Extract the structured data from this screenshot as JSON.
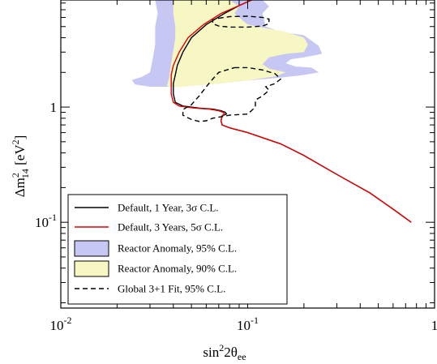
{
  "chart_data": {
    "type": "line",
    "xscale": "log",
    "yscale": "log",
    "xlim": [
      0.01,
      1
    ],
    "ylim": [
      0.018,
      8.5
    ],
    "xlabel": {
      "main": "sin",
      "sup": "2",
      "mid": "2θ",
      "sub": "ee"
    },
    "ylabel": {
      "pre": "Δm",
      "sup": "2",
      "sub": "14",
      "post": " [eV",
      "sup2": "2",
      "end": "]"
    },
    "x_ticks": [
      {
        "value": 0.01,
        "base": "10",
        "exp": "-2"
      },
      {
        "value": 0.1,
        "base": "10",
        "exp": "-1"
      },
      {
        "value": 1,
        "base": "1",
        "exp": ""
      }
    ],
    "y_ticks": [
      {
        "value": 0.1,
        "base": "10",
        "exp": "-1"
      },
      {
        "value": 1,
        "base": "1",
        "exp": ""
      }
    ],
    "legend": {
      "position": "bottom-left",
      "entries": [
        {
          "kind": "line",
          "color": "#000000",
          "dash": "",
          "label": "Default, 1 Year, 3σ C.L."
        },
        {
          "kind": "line",
          "color": "#e00000",
          "dash": "",
          "label": "Default, 3 Years, 5σ C.L."
        },
        {
          "kind": "box",
          "color": "#c6c8f3",
          "label": "Reactor Anomaly, 95% C.L."
        },
        {
          "kind": "box",
          "color": "#f7f7c4",
          "label": "Reactor Anomaly, 90% C.L."
        },
        {
          "kind": "line",
          "color": "#000000",
          "dash": "6,4",
          "label": "Global 3+1 Fit,  95% C.L."
        }
      ]
    },
    "regions": [
      {
        "name": "Reactor Anomaly, 95% C.L.",
        "color": "#c6c8f3",
        "points": [
          [
            0.12,
            8.5
          ],
          [
            0.13,
            7.5
          ],
          [
            0.12,
            6.5
          ],
          [
            0.125,
            5.0
          ],
          [
            0.15,
            4.5
          ],
          [
            0.2,
            4.2
          ],
          [
            0.24,
            3.4
          ],
          [
            0.25,
            2.9
          ],
          [
            0.2,
            2.7
          ],
          [
            0.17,
            2.6
          ],
          [
            0.16,
            2.4
          ],
          [
            0.18,
            2.25
          ],
          [
            0.22,
            2.2
          ],
          [
            0.24,
            2.0
          ],
          [
            0.2,
            1.9
          ],
          [
            0.15,
            1.8
          ],
          [
            0.1,
            1.7
          ],
          [
            0.07,
            1.6
          ],
          [
            0.05,
            1.55
          ],
          [
            0.04,
            1.5
          ],
          [
            0.03,
            1.5
          ],
          [
            0.025,
            1.57
          ],
          [
            0.024,
            1.72
          ],
          [
            0.027,
            1.82
          ],
          [
            0.03,
            2.0
          ],
          [
            0.031,
            2.6
          ],
          [
            0.032,
            3.5
          ],
          [
            0.032,
            5.0
          ],
          [
            0.033,
            6.5
          ],
          [
            0.032,
            8.5
          ]
        ]
      },
      {
        "name": "Reactor Anomaly, 90% C.L.",
        "color": "#f7f7c4",
        "points": [
          [
            0.08,
            8.5
          ],
          [
            0.09,
            7.5
          ],
          [
            0.085,
            6.5
          ],
          [
            0.1,
            5.2
          ],
          [
            0.12,
            4.9
          ],
          [
            0.16,
            4.5
          ],
          [
            0.2,
            4.0
          ],
          [
            0.21,
            3.5
          ],
          [
            0.2,
            3.0
          ],
          [
            0.16,
            2.9
          ],
          [
            0.13,
            2.7
          ],
          [
            0.12,
            2.35
          ],
          [
            0.13,
            2.15
          ],
          [
            0.16,
            2.0
          ],
          [
            0.14,
            1.85
          ],
          [
            0.1,
            1.7
          ],
          [
            0.07,
            1.6
          ],
          [
            0.05,
            1.52
          ],
          [
            0.04,
            1.48
          ],
          [
            0.037,
            1.52
          ],
          [
            0.038,
            1.8
          ],
          [
            0.039,
            2.4
          ],
          [
            0.04,
            3.1
          ],
          [
            0.041,
            4.0
          ],
          [
            0.041,
            5.0
          ],
          [
            0.04,
            6.5
          ],
          [
            0.04,
            8.5
          ]
        ]
      }
    ],
    "series": [
      {
        "name": "Default, 1 Year, 3σ C.L.",
        "color": "#000000",
        "dash": "",
        "x": [
          0.105,
          0.09,
          0.075,
          0.06,
          0.05,
          0.045,
          0.042,
          0.041,
          0.04,
          0.04,
          0.041,
          0.045,
          0.055,
          0.065,
          0.072,
          0.076,
          0.077,
          0.073,
          0.072,
          0.073,
          0.08,
          0.1,
          0.15,
          0.2,
          0.3,
          0.45,
          0.6,
          0.75
        ],
        "y": [
          8.5,
          7.6,
          6.5,
          5.2,
          4.0,
          3.0,
          2.3,
          1.9,
          1.6,
          1.3,
          1.1,
          1.02,
          0.98,
          0.96,
          0.93,
          0.9,
          0.87,
          0.84,
          0.76,
          0.7,
          0.66,
          0.6,
          0.48,
          0.38,
          0.26,
          0.18,
          0.13,
          0.1
        ]
      },
      {
        "name": "Default, 3 Years, 5σ C.L.",
        "color": "#e00000",
        "dash": "",
        "x": [
          0.105,
          0.09,
          0.072,
          0.058,
          0.048,
          0.043,
          0.04,
          0.039,
          0.039,
          0.039,
          0.04,
          0.043,
          0.052,
          0.062,
          0.07,
          0.074,
          0.075,
          0.073,
          0.072,
          0.073,
          0.08,
          0.1,
          0.15,
          0.2,
          0.3,
          0.45,
          0.6,
          0.75
        ],
        "y": [
          8.5,
          7.6,
          6.5,
          5.2,
          4.0,
          3.0,
          2.3,
          1.9,
          1.6,
          1.3,
          1.1,
          1.02,
          0.98,
          0.96,
          0.93,
          0.9,
          0.87,
          0.84,
          0.76,
          0.7,
          0.66,
          0.6,
          0.48,
          0.38,
          0.26,
          0.18,
          0.13,
          0.1
        ]
      },
      {
        "name": "Global 3+1 Fit,  95% C.L.",
        "color": "#000000",
        "dash": "6,4",
        "closed": true,
        "x": [
          0.085,
          0.1,
          0.12,
          0.14,
          0.15,
          0.14,
          0.125,
          0.13,
          0.12,
          0.11,
          0.11,
          0.1,
          0.08,
          0.065,
          0.06,
          0.055,
          0.05,
          0.045,
          0.045,
          0.05,
          0.055,
          0.06,
          0.065,
          0.07,
          0.085
        ],
        "y": [
          2.2,
          2.2,
          2.1,
          1.95,
          1.75,
          1.6,
          1.5,
          1.4,
          1.25,
          1.15,
          1.0,
          0.87,
          0.85,
          0.8,
          0.76,
          0.75,
          0.78,
          0.85,
          0.95,
          1.05,
          1.25,
          1.5,
          1.75,
          2.0,
          2.2
        ]
      },
      {
        "name": "Global 3+1 Fit,  95% C.L.",
        "color": "#000000",
        "dash": "6,4",
        "closed": true,
        "x": [
          0.07,
          0.08,
          0.1,
          0.12,
          0.13,
          0.13,
          0.12,
          0.1,
          0.08,
          0.07,
          0.065,
          0.065,
          0.07
        ],
        "y": [
          5.9,
          6.1,
          6.15,
          6.0,
          5.8,
          5.3,
          5.05,
          4.95,
          4.95,
          5.05,
          5.3,
          5.7,
          5.9
        ]
      }
    ]
  }
}
